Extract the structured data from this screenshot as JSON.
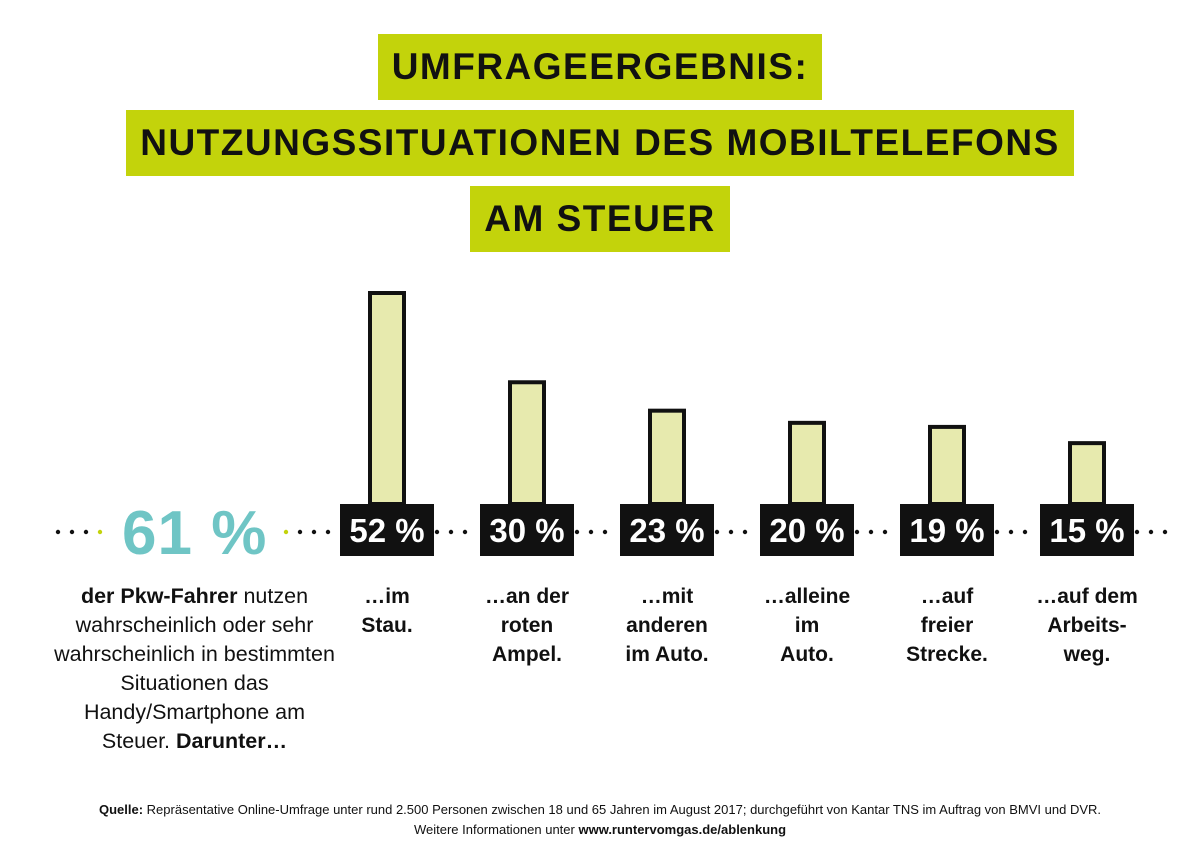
{
  "title": {
    "line1": "UMFRAGEERGEBNIS:",
    "line2": "NUTZUNGSSITUATIONEN DES MOBILTELEFONS",
    "line3": "AM STEUER"
  },
  "summary": {
    "percent": "61 %",
    "text_bold_lead": "der Pkw-Fahrer",
    "text_body": " nutzen wahrscheinlich oder sehr wahrscheinlich in bestimmten Situationen das Handy/Smartphone am Steuer. ",
    "text_bold_end": "Darunter…"
  },
  "colors": {
    "accent_green": "#c3d30b",
    "bar_fill": "#e7eaae",
    "teal": "#6fc5c5",
    "dark": "#111111"
  },
  "chart_data": {
    "type": "bar",
    "categories": [
      "…im Stau.",
      "…an der roten Ampel.",
      "…mit anderen im Auto.",
      "…alleine im Auto.",
      "…auf freier Strecke.",
      "…auf dem Arbeits-weg."
    ],
    "values": [
      52,
      30,
      23,
      20,
      19,
      15
    ],
    "value_labels": [
      "52 %",
      "30 %",
      "23 %",
      "20 %",
      "19 %",
      "15 %"
    ],
    "ylim": [
      0,
      52
    ]
  },
  "bar_labels": [
    "…im\nStau.",
    "…an der\nroten\nAmpel.",
    "…mit\nanderen\nim Auto.",
    "…alleine\nim\nAuto.",
    "…auf\nfreier\nStrecke.",
    "…auf dem\nArbeits-\nweg."
  ],
  "source": {
    "label": "Quelle:",
    "text": " Repräsentative Online-Umfrage unter rund 2.500 Personen zwischen 18 und 65 Jahren im August 2017; durchgeführt von Kantar TNS im Auftrag von BMVI und DVR.",
    "more_prefix": "Weitere Informationen unter ",
    "more_link": "www.runtervomgas.de/ablenkung"
  }
}
